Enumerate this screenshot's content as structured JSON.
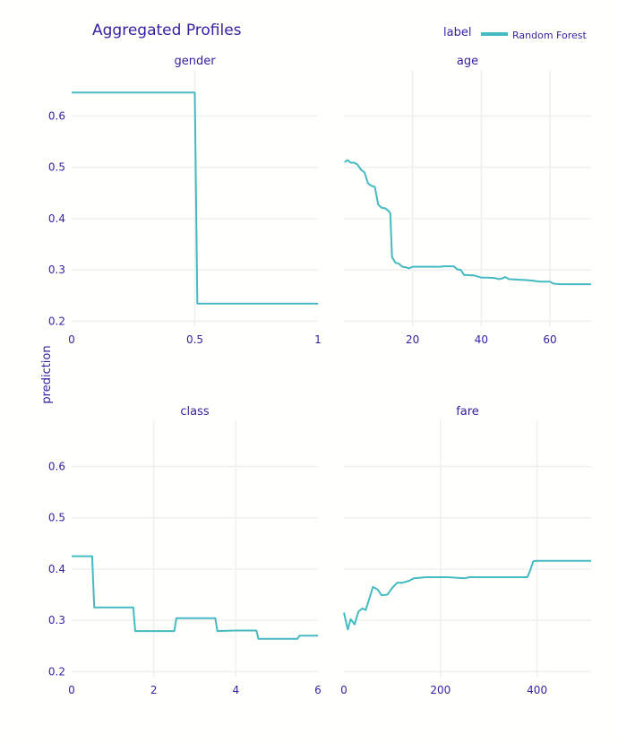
{
  "chart_data": {
    "type": "line",
    "title": "Aggregated Profiles",
    "ylabel": "prediction",
    "legend": {
      "title": "label",
      "placement": "top-right",
      "entries": [
        {
          "name": "Random Forest",
          "color": "#46bac2"
        }
      ]
    },
    "ylim": [
      0.19,
      0.69
    ],
    "yticks": [
      0.2,
      0.3,
      0.4,
      0.5,
      0.6
    ],
    "grid": true,
    "line_color": "#46bac2",
    "panels": [
      {
        "title": "gender",
        "xlim": [
          0,
          1
        ],
        "xticks": [
          0,
          0.5,
          1
        ],
        "xtick_labels": [
          "0",
          "0.5",
          "1"
        ],
        "series": [
          {
            "name": "Random Forest",
            "x": [
              0,
              0.5,
              0.51,
              1
            ],
            "y": [
              0.646,
              0.646,
              0.234,
              0.234
            ]
          }
        ]
      },
      {
        "title": "age",
        "xlim": [
          0,
          72
        ],
        "xticks": [
          20,
          40,
          60
        ],
        "xtick_labels": [
          "20",
          "40",
          "60"
        ],
        "series": [
          {
            "name": "Random Forest",
            "x": [
              0.2,
              1,
              2,
              3,
              4,
              5,
              6,
              7,
              8,
              9,
              10,
              11,
              12,
              13,
              13.5,
              14,
              15,
              16,
              17,
              18,
              19,
              20,
              22,
              25,
              28,
              29,
              30,
              31,
              32,
              33,
              34,
              35,
              38,
              40,
              42,
              44,
              45,
              46,
              47,
              48,
              50,
              53,
              55,
              57,
              58,
              60,
              61,
              63,
              65,
              72
            ],
            "y": [
              0.51,
              0.514,
              0.509,
              0.509,
              0.505,
              0.495,
              0.49,
              0.469,
              0.464,
              0.462,
              0.427,
              0.421,
              0.42,
              0.415,
              0.41,
              0.325,
              0.314,
              0.312,
              0.306,
              0.305,
              0.303,
              0.306,
              0.306,
              0.306,
              0.306,
              0.307,
              0.307,
              0.307,
              0.307,
              0.301,
              0.3,
              0.29,
              0.289,
              0.285,
              0.285,
              0.284,
              0.282,
              0.283,
              0.286,
              0.282,
              0.281,
              0.28,
              0.279,
              0.277,
              0.277,
              0.277,
              0.273,
              0.272,
              0.272,
              0.272
            ]
          }
        ]
      },
      {
        "title": "class",
        "xlim": [
          0,
          6
        ],
        "xticks": [
          0,
          2,
          4,
          6
        ],
        "xtick_labels": [
          "0",
          "2",
          "4",
          "6"
        ],
        "series": [
          {
            "name": "Random Forest",
            "x": [
              0,
              0.5,
              0.55,
              1.5,
              1.55,
              2.5,
              2.55,
              3.5,
              3.55,
              4,
              4.5,
              4.55,
              5.5,
              5.55,
              6
            ],
            "y": [
              0.425,
              0.425,
              0.325,
              0.325,
              0.279,
              0.279,
              0.304,
              0.304,
              0.279,
              0.28,
              0.28,
              0.264,
              0.264,
              0.27,
              0.27
            ]
          }
        ]
      },
      {
        "title": "fare",
        "xlim": [
          0,
          512
        ],
        "xticks": [
          0,
          200,
          400
        ],
        "xtick_labels": [
          "0",
          "200",
          "400"
        ],
        "series": [
          {
            "name": "Random Forest",
            "x": [
              0,
              8,
              14,
              22,
              30,
              38,
              45,
              52,
              60,
              70,
              78,
              90,
              100,
              110,
              120,
              135,
              145,
              170,
              200,
              215,
              250,
              260,
              300,
              350,
              380,
              385,
              392,
              400,
              450,
              512
            ],
            "y": [
              0.315,
              0.282,
              0.302,
              0.292,
              0.317,
              0.323,
              0.32,
              0.34,
              0.365,
              0.36,
              0.349,
              0.35,
              0.363,
              0.373,
              0.373,
              0.377,
              0.382,
              0.384,
              0.384,
              0.384,
              0.382,
              0.384,
              0.384,
              0.384,
              0.384,
              0.395,
              0.415,
              0.416,
              0.416,
              0.416
            ]
          }
        ]
      }
    ]
  }
}
